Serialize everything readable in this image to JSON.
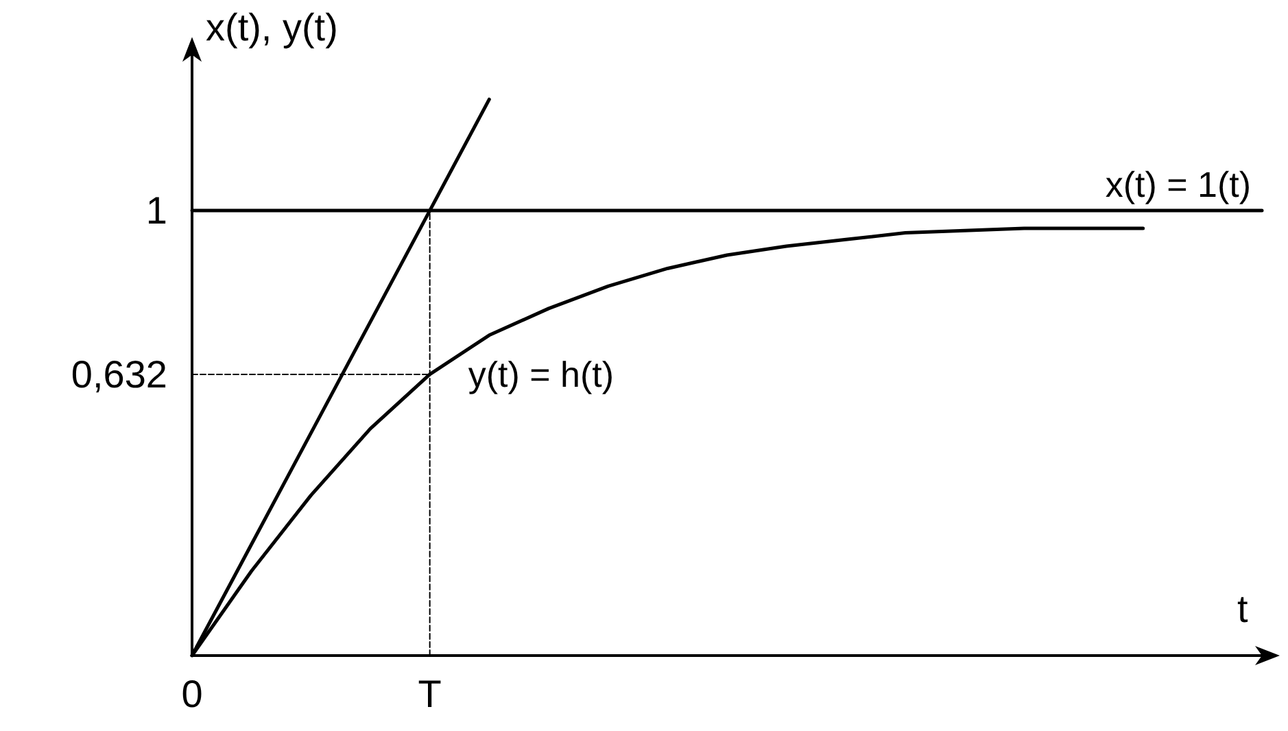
{
  "chart_data": {
    "type": "line",
    "xlabel": "t",
    "ylabel": "x(t), y(t)",
    "categories": [
      "0",
      null,
      null,
      null,
      "T",
      null,
      null,
      null,
      null,
      null,
      null,
      null,
      null,
      null,
      null,
      null,
      null,
      null,
      null
    ],
    "ylim": [
      0,
      1.35
    ],
    "yticks": [
      {
        "value": 0.632,
        "label": "0,632"
      },
      1
    ],
    "grid": false,
    "legend": false,
    "marker": "none",
    "series": [
      {
        "name": "x(t) = 1(t)",
        "color": "#000000",
        "values": [
          1,
          1,
          1,
          1,
          1,
          1,
          1,
          1,
          1,
          1,
          1,
          1,
          1,
          1,
          1,
          1,
          1,
          1,
          1
        ],
        "line_style": "solid"
      },
      {
        "color": "#000000",
        "values": [
          0,
          0.25,
          0.5,
          0.75,
          1,
          1.25,
          null,
          null,
          null,
          null,
          null,
          null,
          null,
          null,
          null,
          null,
          null,
          null,
          null
        ],
        "line_style": "solid"
      },
      {
        "color": "#000000",
        "values": [
          0,
          0.19,
          0.36,
          0.51,
          0.632,
          0.72,
          0.78,
          0.83,
          0.87,
          0.9,
          0.92,
          0.935,
          0.95,
          0.955,
          0.96,
          0.96,
          0.96,
          null,
          null
        ],
        "line_style": "solid"
      },
      {
        "color": "#000000",
        "x": [
          "T",
          "T"
        ],
        "values": [
          0,
          1
        ],
        "line_style": "dashed"
      },
      {
        "color": "#000000",
        "x": [
          "0",
          "T"
        ],
        "values": [
          0.632,
          0.632
        ],
        "line_style": "dashed"
      }
    ],
    "annotations": [
      {
        "text": "y(t) = h(t)",
        "x": "T",
        "y": 0.632
      }
    ]
  }
}
